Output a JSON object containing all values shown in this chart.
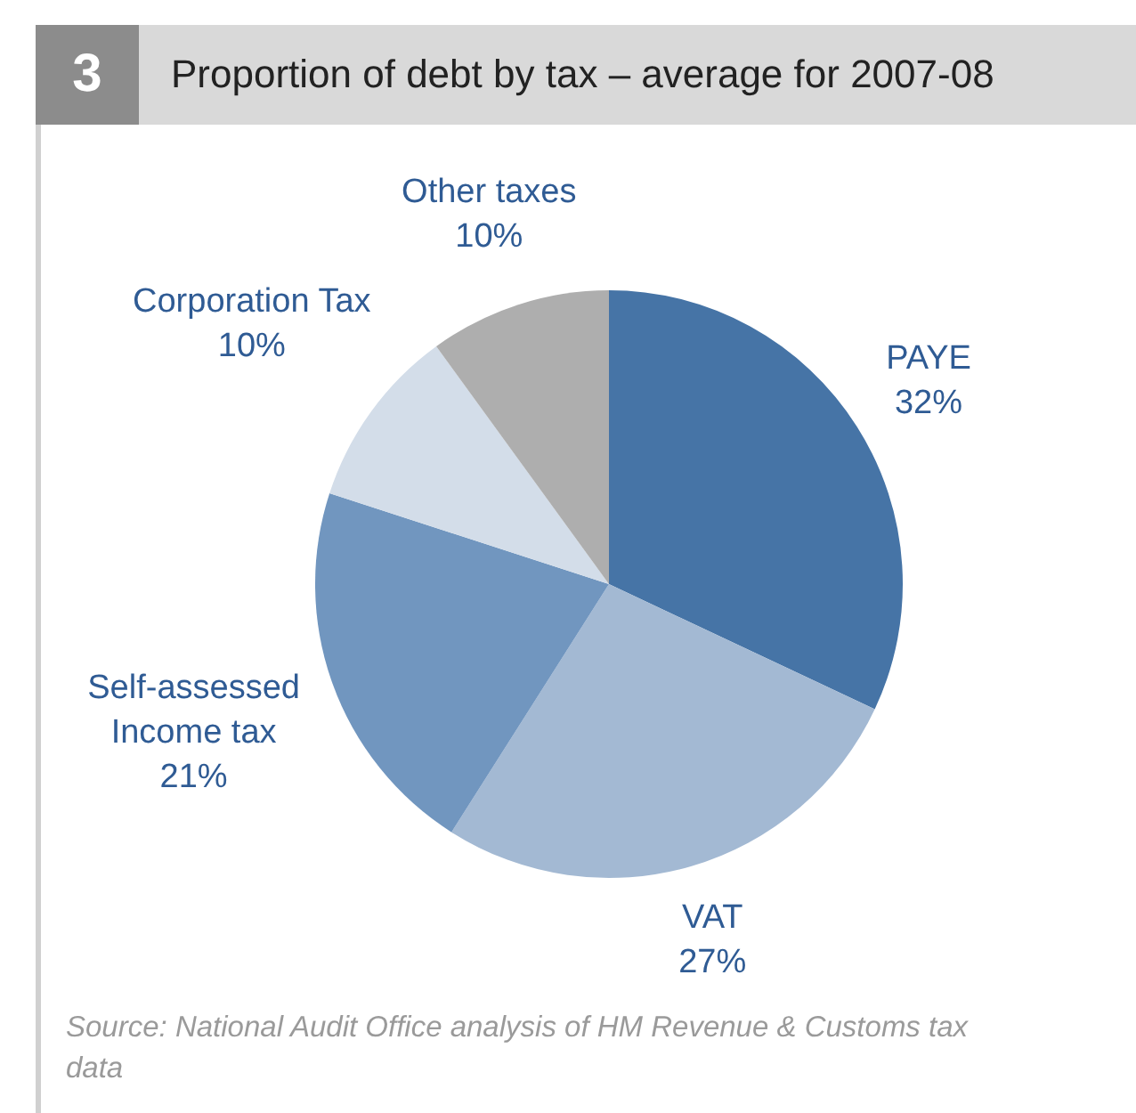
{
  "chart_data": {
    "type": "pie",
    "title": "Proportion of debt by tax – average for 2007-08",
    "categories": [
      "PAYE",
      "VAT",
      "Self-assessed\nIncome tax",
      "Corporation Tax",
      "Other taxes"
    ],
    "values": [
      32,
      27,
      21,
      10,
      10
    ],
    "value_labels": [
      "32%",
      "27%",
      "21%",
      "10%",
      "10%"
    ],
    "colors": [
      "#4674a6",
      "#a3b9d3",
      "#7196bf",
      "#d3dde9",
      "#aeaeae"
    ],
    "legend": false,
    "annotations": [
      "3",
      "Source: National Audit Office analysis of HM Revenue & Customs tax data"
    ]
  }
}
